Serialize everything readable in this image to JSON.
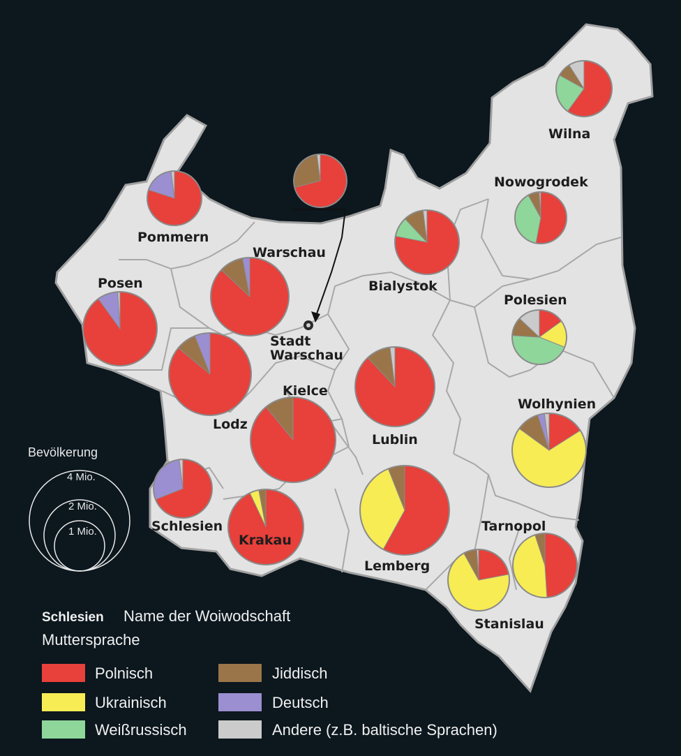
{
  "colors": {
    "polnisch": "#e8403a",
    "ukrainisch": "#f7ec54",
    "weissrussisch": "#8fd69b",
    "jiddisch": "#9a7549",
    "deutsch": "#9b8fd1",
    "andere": "#cbcbcb",
    "land": "#e3e3e3",
    "border": "#9a9a9a",
    "background": "#0c171e"
  },
  "labels": {
    "wilna": "Wilna",
    "nowogrodek": "Nowogrodek",
    "pommern": "Pommern",
    "warschau": "Warschau",
    "posen": "Posen",
    "bialystok": "Bialystok",
    "polesien": "Polesien",
    "stadt_warschau_1": "Stadt",
    "stadt_warschau_2": "Warschau",
    "kielce": "Kielce",
    "lodz": "Lodz",
    "wolhynien": "Wolhynien",
    "lublin": "Lublin",
    "schlesien": "Schlesien",
    "krakau": "Krakau",
    "tarnopol": "Tarnopol",
    "lemberg": "Lemberg",
    "stanislau": "Stanislau"
  },
  "scale": {
    "title": "Bevölkerung",
    "c4": "4 Mio.",
    "c2": "2 Mio.",
    "c1": "1 Mio."
  },
  "legend": {
    "sample_name": "Schlesien",
    "sample_desc": "Name der Woiwodschaft",
    "subtitle": "Muttersprache",
    "polnisch": "Polnisch",
    "ukrainisch": "Ukrainisch",
    "weissrussisch": "Weißrussisch",
    "jiddisch": "Jiddisch",
    "deutsch": "Deutsch",
    "andere": "Andere (z.B. baltische Sprachen)"
  },
  "pies": [
    {
      "name": "Wilna",
      "shares": {
        "polnisch": 60,
        "weissrussisch": 23,
        "jiddisch": 8,
        "andere": 9
      }
    },
    {
      "name": "Nowogrodek",
      "shares": {
        "polnisch": 53,
        "weissrussisch": 39,
        "jiddisch": 7,
        "andere": 1
      }
    },
    {
      "name": "Pommern",
      "shares": {
        "polnisch": 80,
        "deutsch": 18,
        "andere": 2
      }
    },
    {
      "name": "Stadt Warschau",
      "shares": {
        "polnisch": 71,
        "jiddisch": 27,
        "andere": 2
      }
    },
    {
      "name": "Warschau",
      "shares": {
        "polnisch": 87,
        "jiddisch": 10,
        "deutsch": 3
      }
    },
    {
      "name": "Bialystok",
      "shares": {
        "polnisch": 78,
        "jiddisch": 10,
        "weissrussisch": 10,
        "andere": 2
      }
    },
    {
      "name": "Posen",
      "shares": {
        "polnisch": 90,
        "deutsch": 9,
        "andere": 1
      }
    },
    {
      "name": "Polesien",
      "shares": {
        "polnisch": 15,
        "weissrussisch": 45,
        "ukrainisch": 16,
        "jiddisch": 11,
        "andere": 13
      }
    },
    {
      "name": "Lodz",
      "shares": {
        "polnisch": 86,
        "jiddisch": 8,
        "deutsch": 6
      }
    },
    {
      "name": "Kielce",
      "shares": {
        "polnisch": 89,
        "jiddisch": 11
      }
    },
    {
      "name": "Lublin",
      "shares": {
        "polnisch": 88,
        "jiddisch": 10,
        "andere": 2
      }
    },
    {
      "name": "Wolhynien",
      "shares": {
        "polnisch": 16,
        "ukrainisch": 69,
        "deutsch": 3,
        "jiddisch": 10,
        "andere": 2
      }
    },
    {
      "name": "Schlesien",
      "shares": {
        "polnisch": 69,
        "deutsch": 29,
        "andere": 2
      }
    },
    {
      "name": "Krakau",
      "shares": {
        "polnisch": 93,
        "ukrainisch": 4,
        "jiddisch": 3
      }
    },
    {
      "name": "Lemberg",
      "shares": {
        "polnisch": 58,
        "ukrainisch": 36,
        "jiddisch": 6
      }
    },
    {
      "name": "Stanislau",
      "shares": {
        "polnisch": 22,
        "ukrainisch": 70,
        "jiddisch": 7,
        "andere": 1
      }
    },
    {
      "name": "Tarnopol",
      "shares": {
        "polnisch": 49,
        "ukrainisch": 46,
        "jiddisch": 5
      }
    }
  ]
}
